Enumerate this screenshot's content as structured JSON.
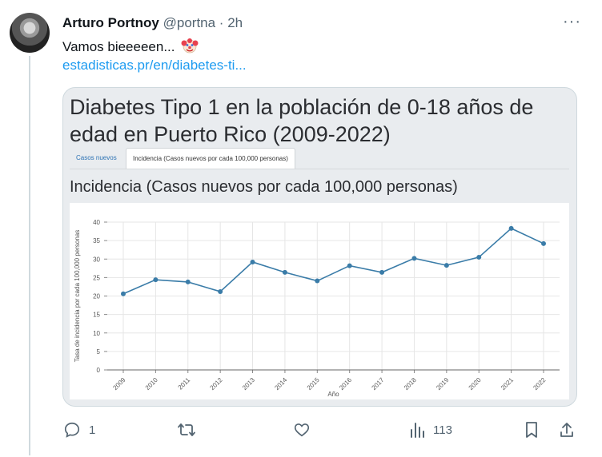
{
  "tweet": {
    "author_name": "Arturo Portnoy",
    "handle_time": "@portna · 2h",
    "text": "Vamos bieeeeen...",
    "emoji_icon": "clown-face-icon",
    "link": "estadisticas.pr/en/diabetes-ti..."
  },
  "card": {
    "title": "Diabetes Tipo 1 en la población de 0-18 años de edad en Puerto Rico (2009-2022)",
    "tabs": [
      {
        "label": "Casos nuevos",
        "active": false
      },
      {
        "label": "Incidencia (Casos nuevos por cada 100,000 personas)",
        "active": true
      }
    ],
    "section_title": "Incidencia (Casos nuevos por cada 100,000 personas)"
  },
  "chart_data": {
    "type": "line",
    "title": "",
    "xlabel": "Año",
    "ylabel": "Tasa de incidencia por cada 100,000 personas",
    "x": [
      "2009",
      "2010",
      "2011",
      "2012",
      "2013",
      "2014",
      "2015",
      "2016",
      "2017",
      "2018",
      "2019",
      "2020",
      "2021",
      "2022"
    ],
    "values": [
      20.6,
      24.4,
      23.8,
      21.2,
      29.2,
      26.4,
      24.1,
      28.2,
      26.4,
      30.2,
      28.3,
      30.5,
      38.3,
      34.2
    ],
    "ylim": [
      0,
      40
    ],
    "yticks": [
      0,
      5,
      10,
      15,
      20,
      25,
      30,
      35,
      40
    ],
    "grid": true,
    "line_color": "#3a7ca8"
  },
  "actions": {
    "reply_count": "1",
    "retweet_count": "",
    "like_count": "",
    "views_count": "113"
  }
}
